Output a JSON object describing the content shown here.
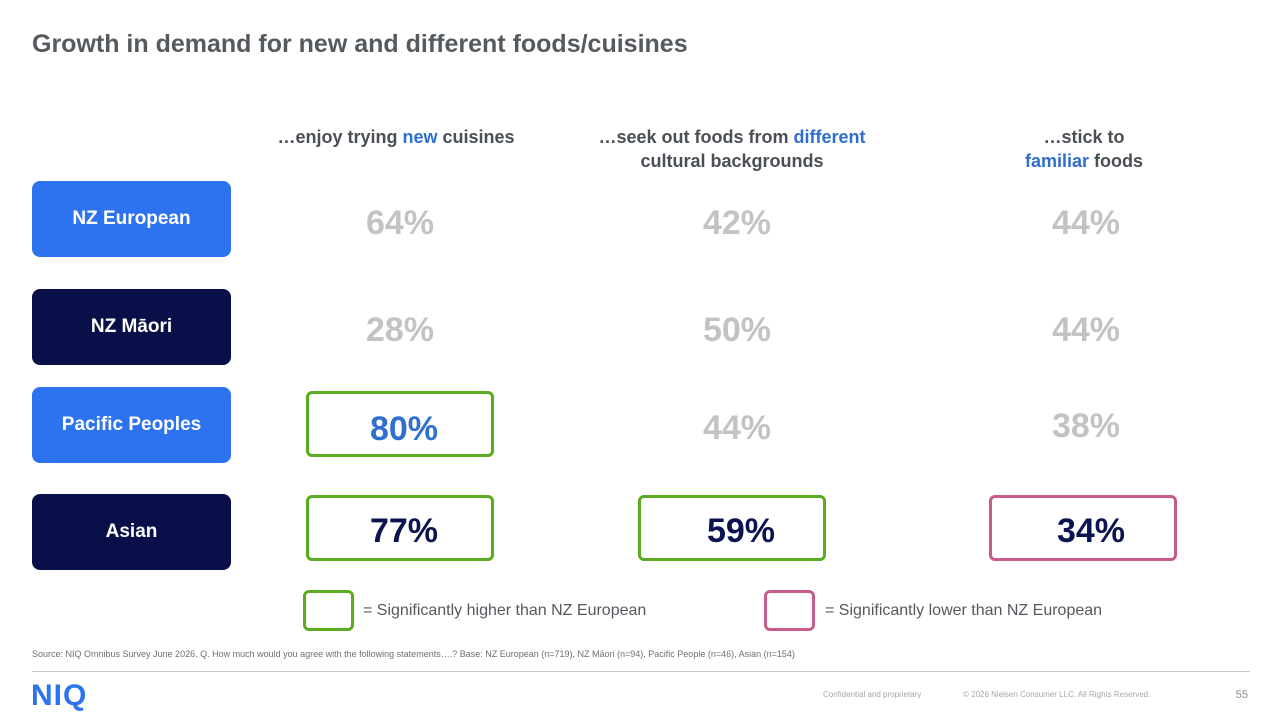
{
  "title": "Growth in demand for new and different foods/cuisines",
  "columns": [
    {
      "pre": "…enjoy trying ",
      "hl": "new",
      "post": " cuisines",
      "line2": ""
    },
    {
      "pre": "…seek out foods from ",
      "hl": "different",
      "post": "",
      "line2": "cultural backgrounds"
    },
    {
      "pre": "…stick to",
      "hl": "familiar",
      "post": " foods",
      "line2": ""
    }
  ],
  "rows": [
    {
      "label": "NZ European",
      "values": [
        "64%",
        "42%",
        "44%"
      ]
    },
    {
      "label": "NZ Māori",
      "values": [
        "28%",
        "50%",
        "44%"
      ]
    },
    {
      "label": "Pacific Peoples",
      "values": [
        "80%",
        "44%",
        "38%"
      ]
    },
    {
      "label": "Asian",
      "values": [
        "77%",
        "59%",
        "34%"
      ]
    }
  ],
  "legend": {
    "higher": "= Significantly higher than NZ European",
    "lower": "= Significantly lower than NZ European"
  },
  "colors": {
    "accent_blue": "#2d72ef",
    "navy": "#090f48",
    "sig_higher": "#5aab1f",
    "sig_lower": "#c95b8b",
    "neutral_value": "#c3c3c3"
  },
  "source": "Source: NIQ Omnibus Survey June 2026. Q. How much would you agree with the following statements….? Base: NZ European (n=719), NZ Māori (n=94), Pacific People (n=46), Asian (n=154)",
  "footer": {
    "logo": "NIQ",
    "confidential": "Confidential and proprietary",
    "copyright": "© 2026 Nielsen Consumer LLC. All Rights Reserved.",
    "page": "55"
  }
}
